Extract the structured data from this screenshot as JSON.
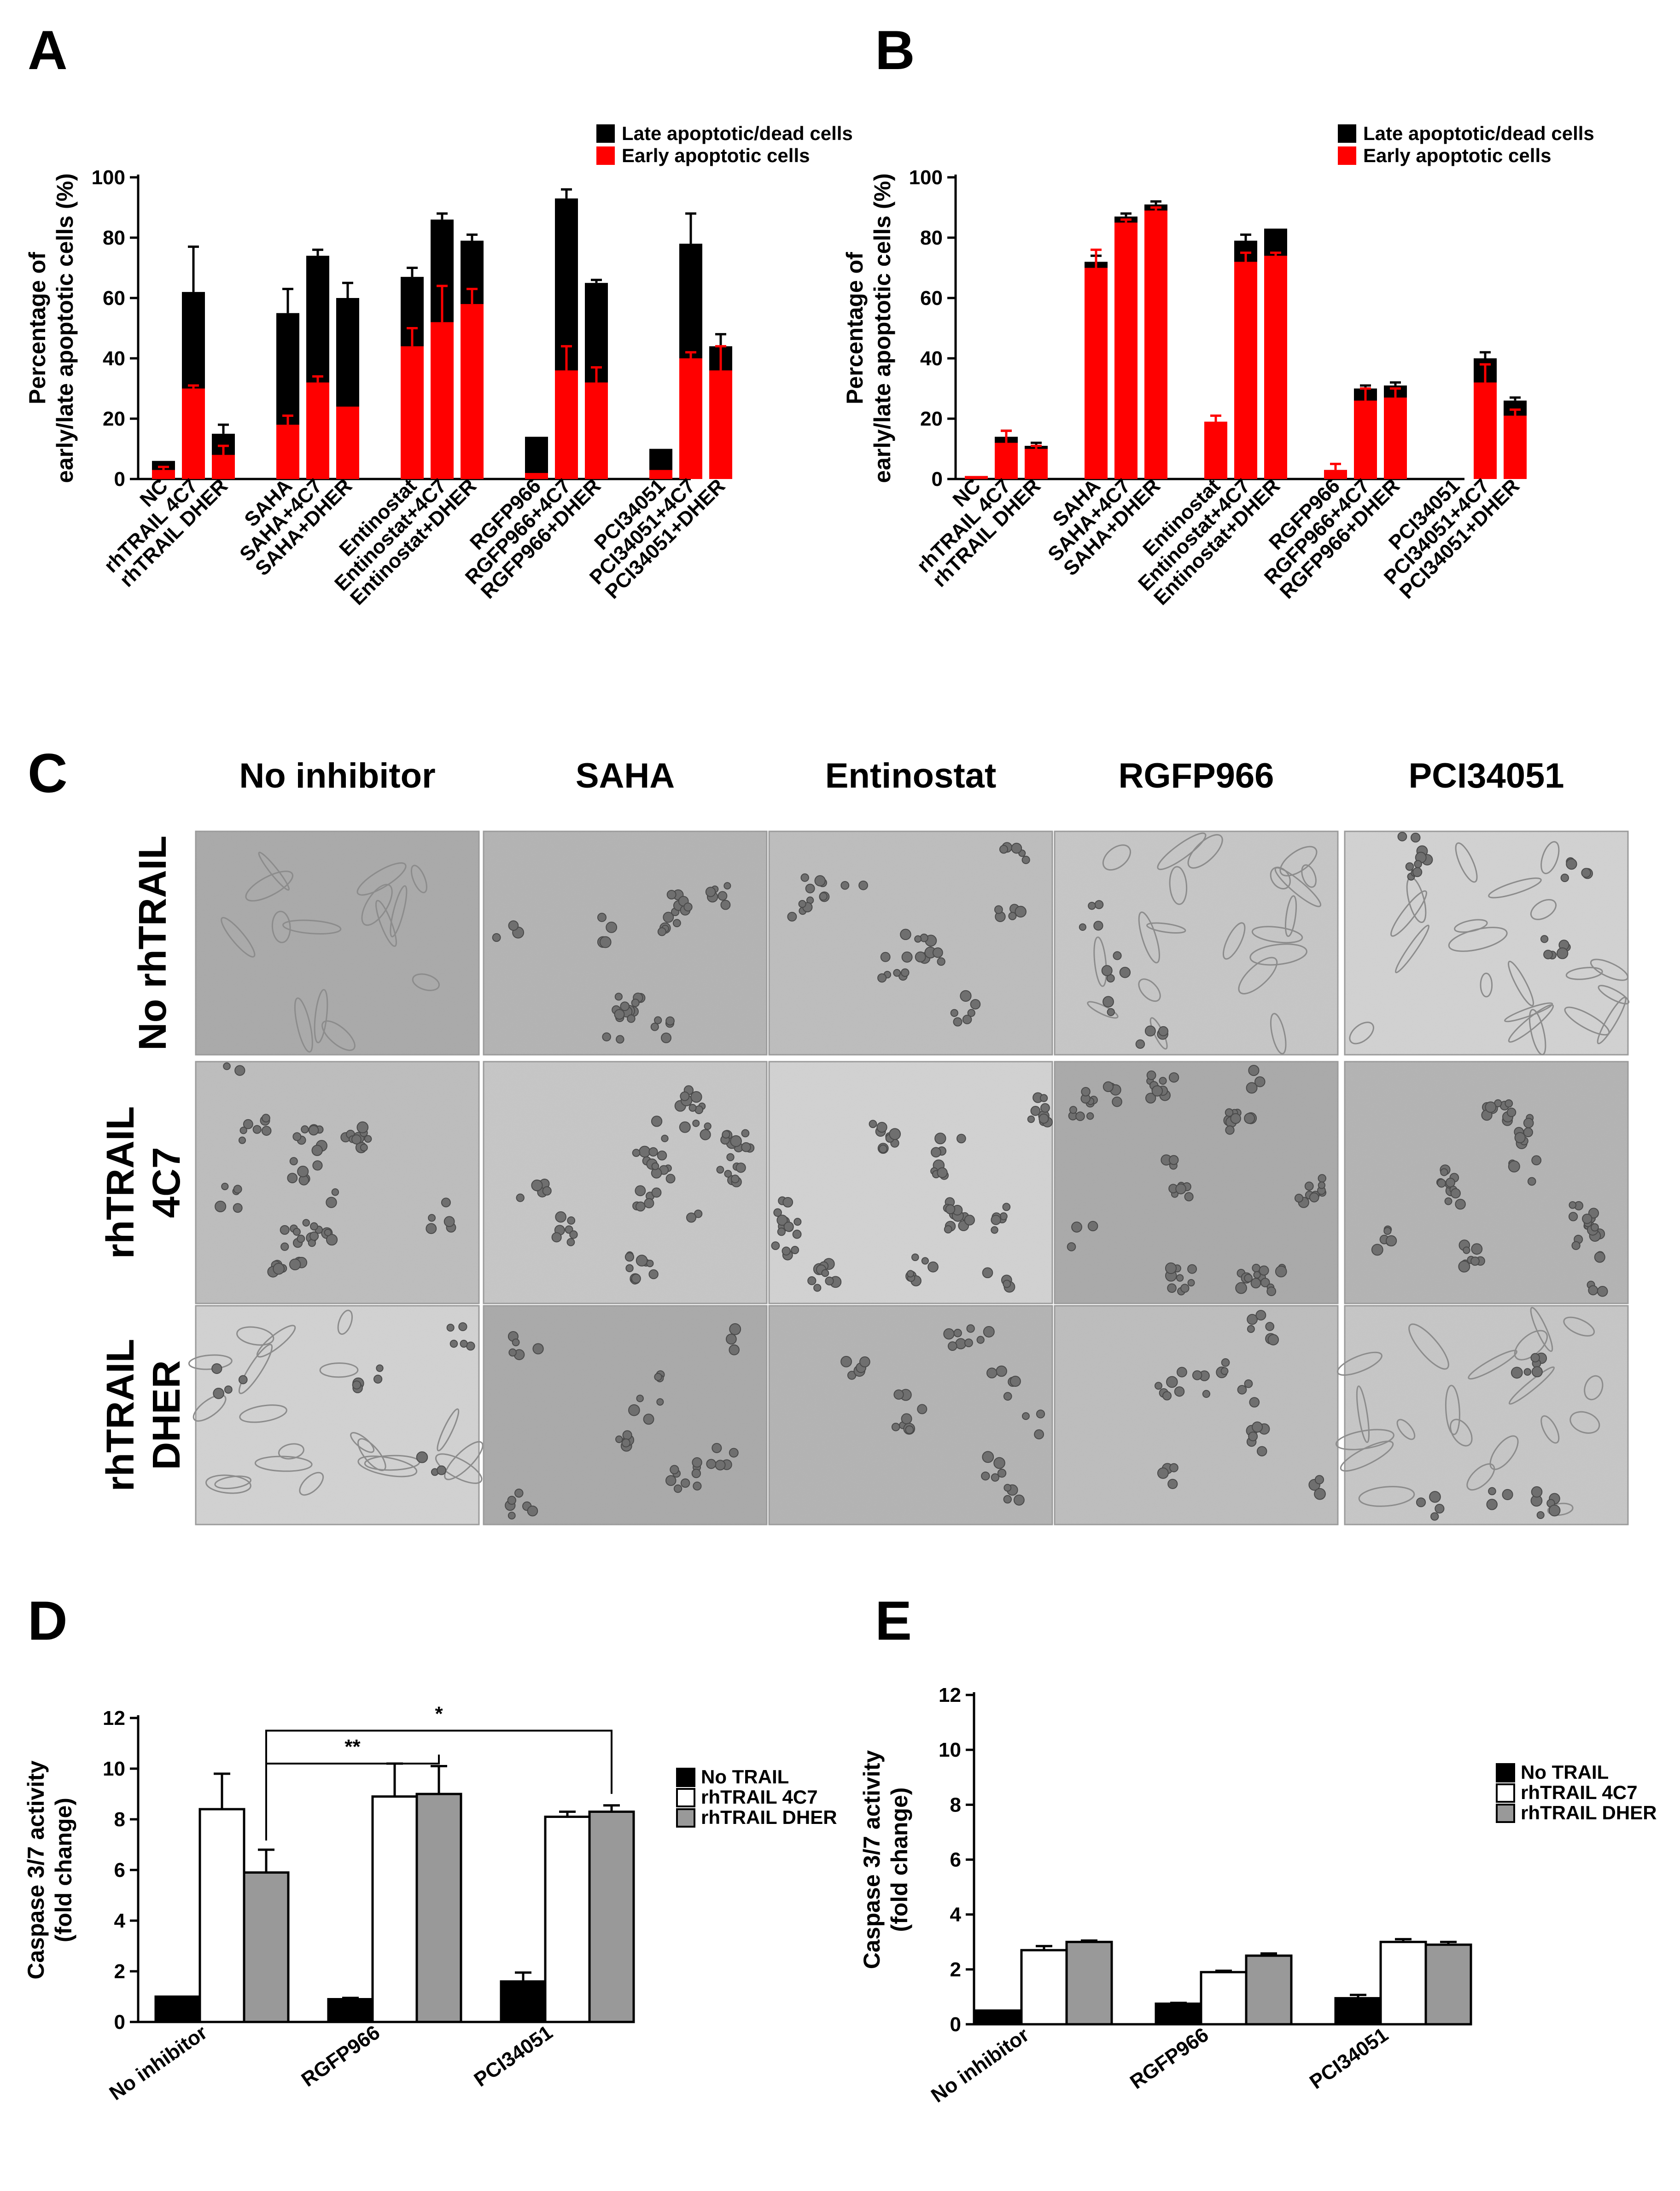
{
  "panels": {
    "A": "A",
    "B": "B",
    "C": "C",
    "D": "D",
    "E": "E"
  },
  "colors": {
    "late": "#000000",
    "early": "#ff0000",
    "no_trail": "#000000",
    "rhtrail_4c7": "#ffffff",
    "rhtrail_dher": "#999999"
  },
  "chart_data": [
    {
      "id": "A",
      "type": "bar",
      "stacked": true,
      "ylabel_line1": "Percentage of",
      "ylabel_line2": "early/late apoptotic cells (%)",
      "ylim": [
        0,
        100
      ],
      "yticks": [
        0,
        20,
        40,
        60,
        80,
        100
      ],
      "legend": [
        "Late apoptotic/dead cells",
        "Early apoptotic cells"
      ],
      "legend_position": "top-right",
      "groups": [
        [
          "NC",
          "rhTRAIL 4C7",
          "rhTRAIL DHER"
        ],
        [
          "SAHA",
          "SAHA+4C7",
          "SAHA+DHER"
        ],
        [
          "Entinostat",
          "Entinostat+4C7",
          "Entinostat+DHER"
        ],
        [
          "RGFP966",
          "RGFP966+4C7",
          "RGFP966+DHER"
        ],
        [
          "PCI34051",
          "PCI34051+4C7",
          "PCI34051+DHER"
        ]
      ],
      "series": [
        {
          "name": "Early apoptotic cells",
          "values": [
            [
              3,
              30,
              8
            ],
            [
              18,
              32,
              24
            ],
            [
              44,
              52,
              58
            ],
            [
              2,
              36,
              32
            ],
            [
              3,
              40,
              36
            ]
          ],
          "errors": [
            [
              1,
              1,
              3
            ],
            [
              3,
              2,
              0
            ],
            [
              6,
              12,
              5
            ],
            [
              0,
              8,
              5
            ],
            [
              0,
              2,
              8
            ]
          ]
        },
        {
          "name": "Late apoptotic/dead cells",
          "totals": [
            [
              6,
              62,
              15
            ],
            [
              55,
              74,
              60
            ],
            [
              67,
              86,
              79
            ],
            [
              14,
              93,
              65
            ],
            [
              10,
              78,
              44
            ]
          ],
          "errors": [
            [
              0,
              15,
              3
            ],
            [
              8,
              2,
              5
            ],
            [
              3,
              2,
              2
            ],
            [
              0,
              3,
              1
            ],
            [
              0,
              10,
              4
            ]
          ]
        }
      ]
    },
    {
      "id": "B",
      "type": "bar",
      "stacked": true,
      "ylabel_line1": "Percentage of",
      "ylabel_line2": "early/late apoptotic cells (%)",
      "ylim": [
        0,
        100
      ],
      "yticks": [
        0,
        20,
        40,
        60,
        80,
        100
      ],
      "legend": [
        "Late apoptotic/dead cells",
        "Early apoptotic cells"
      ],
      "legend_position": "top-right",
      "groups": [
        [
          "NC",
          "rhTRAIL 4C7",
          "rhTRAIL DHER"
        ],
        [
          "SAHA",
          "SAHA+4C7",
          "SAHA+DHER"
        ],
        [
          "Entinostat",
          "Entinostat+4C7",
          "Entinostat+DHER"
        ],
        [
          "RGFP966",
          "RGFP966+4C7",
          "RGFP966+DHER"
        ],
        [
          "PCI34051",
          "PCI34051+4C7",
          "PCI34051+DHER"
        ]
      ],
      "series": [
        {
          "name": "Early apoptotic cells",
          "values": [
            [
              1,
              12,
              10
            ],
            [
              70,
              85,
              89
            ],
            [
              19,
              72,
              74
            ],
            [
              3,
              26,
              27
            ],
            [
              0,
              32,
              21
            ]
          ],
          "errors": [
            [
              0,
              4,
              1
            ],
            [
              6,
              1,
              1
            ],
            [
              2,
              3,
              1
            ],
            [
              2,
              4,
              3
            ],
            [
              0,
              6,
              2
            ]
          ]
        },
        {
          "name": "Late apoptotic/dead cells",
          "totals": [
            [
              1,
              14,
              11
            ],
            [
              72,
              87,
              91
            ],
            [
              19,
              79,
              83
            ],
            [
              3,
              30,
              31
            ],
            [
              0,
              40,
              26
            ]
          ],
          "errors": [
            [
              0,
              2,
              1
            ],
            [
              2,
              1,
              1
            ],
            [
              0,
              2,
              0
            ],
            [
              0,
              1,
              1
            ],
            [
              0,
              2,
              1
            ]
          ]
        }
      ]
    },
    {
      "id": "D",
      "type": "bar",
      "ylabel_line1": "Caspase 3/7 activity",
      "ylabel_line2": "(fold change)",
      "ylim": [
        0,
        12
      ],
      "yticks": [
        0,
        2,
        4,
        6,
        8,
        10,
        12
      ],
      "categories": [
        "No inhibitor",
        "RGFP966",
        "PCI34051"
      ],
      "legend_position": "right",
      "series": [
        {
          "name": "No TRAIL",
          "values": [
            1.0,
            0.9,
            1.6
          ],
          "errors": [
            0,
            0.05,
            0.35
          ]
        },
        {
          "name": "rhTRAIL 4C7",
          "values": [
            8.4,
            8.9,
            8.1
          ],
          "errors": [
            1.4,
            1.3,
            0.2
          ]
        },
        {
          "name": "rhTRAIL DHER",
          "values": [
            5.9,
            9.0,
            8.3
          ],
          "errors": [
            0.9,
            1.1,
            0.25
          ]
        }
      ],
      "significance": [
        {
          "label": "**",
          "from": "No inhibitor",
          "to": "RGFP966"
        },
        {
          "label": "*",
          "from": "No inhibitor",
          "to": "PCI34051"
        }
      ]
    },
    {
      "id": "E",
      "type": "bar",
      "ylabel_line1": "Caspase 3/7 activity",
      "ylabel_line2": "(fold change)",
      "ylim": [
        0,
        12
      ],
      "yticks": [
        0,
        2,
        4,
        6,
        8,
        10,
        12
      ],
      "categories": [
        "No inhibitor",
        "RGFP966",
        "PCI34051"
      ],
      "legend_position": "right",
      "series": [
        {
          "name": "No TRAIL",
          "values": [
            0.5,
            0.75,
            0.95
          ],
          "errors": [
            0,
            0.03,
            0.12
          ]
        },
        {
          "name": "rhTRAIL 4C7",
          "values": [
            2.7,
            1.9,
            3.0
          ],
          "errors": [
            0.15,
            0.05,
            0.1
          ]
        },
        {
          "name": "rhTRAIL DHER",
          "values": [
            3.0,
            2.5,
            2.9
          ],
          "errors": [
            0.05,
            0.08,
            0.1
          ]
        }
      ]
    }
  ],
  "micrograph": {
    "columns": [
      "No inhibitor",
      "SAHA",
      "Entinostat",
      "RGFP966",
      "PCI34051"
    ],
    "rows": [
      {
        "line1": "No rhTRAIL",
        "line2": ""
      },
      {
        "line1": "rhTRAIL",
        "line2": "4C7"
      },
      {
        "line1": "rhTRAIL",
        "line2": "DHER"
      }
    ],
    "cell_density": [
      [
        0,
        2,
        2,
        1,
        1
      ],
      [
        3,
        3,
        3,
        3,
        3
      ],
      [
        1,
        2,
        2,
        2,
        1
      ]
    ]
  }
}
